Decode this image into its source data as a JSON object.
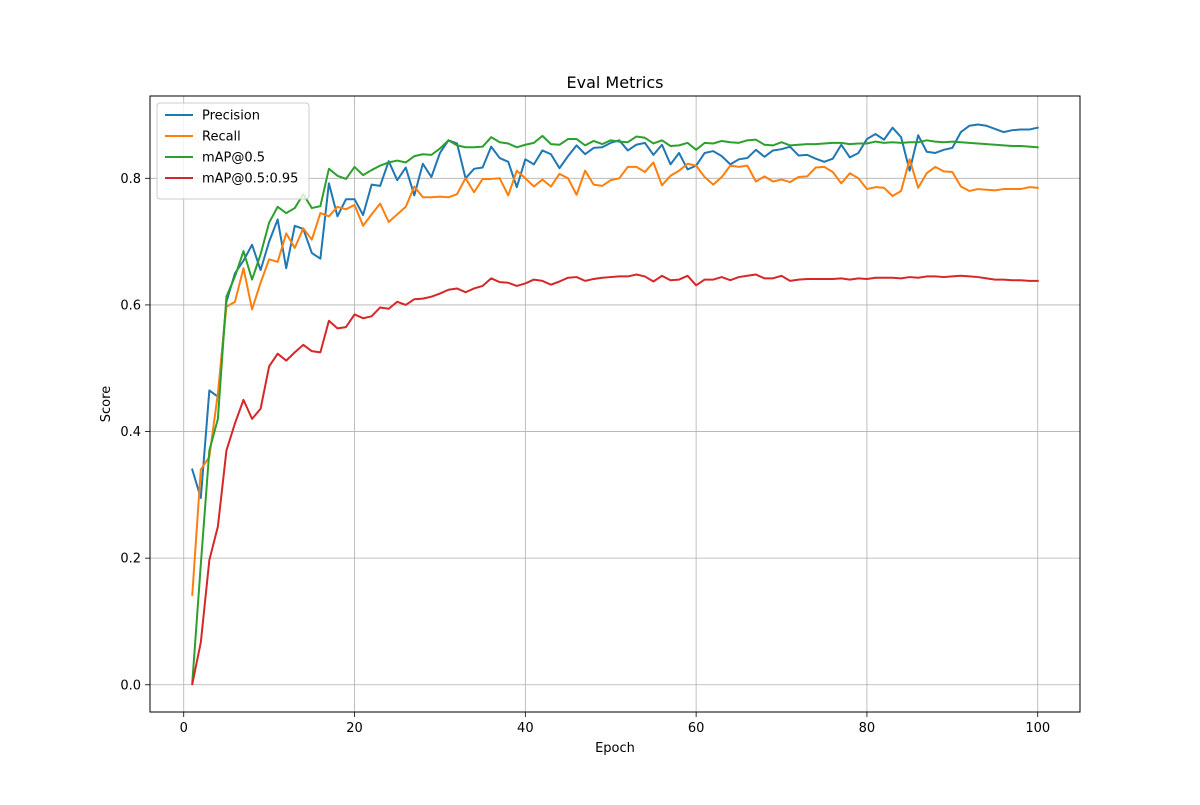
{
  "chart_data": {
    "type": "line",
    "title": "Eval Metrics",
    "xlabel": "Epoch",
    "ylabel": "Score",
    "xlim": [
      -3.95,
      104.95
    ],
    "ylim": [
      -0.043,
      0.93
    ],
    "xticks": [
      0,
      20,
      40,
      60,
      80,
      100
    ],
    "yticks": [
      0.0,
      0.2,
      0.4,
      0.6,
      0.8
    ],
    "xtick_labels": [
      "0",
      "20",
      "40",
      "60",
      "80",
      "100"
    ],
    "ytick_labels": [
      "0.0",
      "0.2",
      "0.4",
      "0.6",
      "0.8"
    ],
    "grid": true,
    "legend_position": "top-left",
    "x_start": 1,
    "series": [
      {
        "name": "Precision",
        "color": "#1f77b4",
        "values": [
          0.34,
          0.295,
          0.465,
          0.455,
          0.605,
          0.65,
          0.67,
          0.695,
          0.655,
          0.7,
          0.735,
          0.658,
          0.725,
          0.72,
          0.682,
          0.673,
          0.792,
          0.74,
          0.767,
          0.767,
          0.742,
          0.79,
          0.788,
          0.827,
          0.797,
          0.817,
          0.773,
          0.823,
          0.802,
          0.84,
          0.86,
          0.855,
          0.8,
          0.815,
          0.817,
          0.85,
          0.832,
          0.826,
          0.786,
          0.83,
          0.822,
          0.844,
          0.838,
          0.816,
          0.835,
          0.852,
          0.838,
          0.848,
          0.849,
          0.856,
          0.86,
          0.844,
          0.853,
          0.856,
          0.837,
          0.853,
          0.822,
          0.84,
          0.814,
          0.82,
          0.84,
          0.843,
          0.835,
          0.822,
          0.83,
          0.832,
          0.845,
          0.834,
          0.844,
          0.846,
          0.85,
          0.836,
          0.837,
          0.831,
          0.826,
          0.831,
          0.853,
          0.833,
          0.84,
          0.862,
          0.87,
          0.861,
          0.88,
          0.865,
          0.812,
          0.868,
          0.842,
          0.84,
          0.845,
          0.848,
          0.873,
          0.883,
          0.885,
          0.883,
          0.878,
          0.873,
          0.876,
          0.877,
          0.877,
          0.88
        ]
      },
      {
        "name": "Recall",
        "color": "#ff7f0e",
        "values": [
          0.142,
          0.34,
          0.36,
          0.46,
          0.597,
          0.605,
          0.658,
          0.593,
          0.635,
          0.672,
          0.668,
          0.713,
          0.69,
          0.721,
          0.703,
          0.745,
          0.74,
          0.755,
          0.751,
          0.758,
          0.725,
          0.743,
          0.76,
          0.731,
          0.743,
          0.755,
          0.787,
          0.77,
          0.77,
          0.771,
          0.77,
          0.775,
          0.8,
          0.778,
          0.799,
          0.799,
          0.8,
          0.773,
          0.812,
          0.8,
          0.787,
          0.798,
          0.787,
          0.807,
          0.8,
          0.774,
          0.812,
          0.79,
          0.788,
          0.797,
          0.8,
          0.818,
          0.818,
          0.81,
          0.825,
          0.789,
          0.804,
          0.812,
          0.823,
          0.82,
          0.802,
          0.79,
          0.802,
          0.82,
          0.818,
          0.82,
          0.795,
          0.803,
          0.795,
          0.798,
          0.794,
          0.802,
          0.803,
          0.817,
          0.818,
          0.81,
          0.792,
          0.808,
          0.8,
          0.783,
          0.786,
          0.785,
          0.772,
          0.78,
          0.83,
          0.785,
          0.808,
          0.818,
          0.811,
          0.81,
          0.787,
          0.78,
          0.783,
          0.782,
          0.781,
          0.783,
          0.783,
          0.783,
          0.786,
          0.785
        ]
      },
      {
        "name": "mAP@0.5",
        "color": "#2ca02c",
        "values": [
          0.003,
          0.19,
          0.37,
          0.42,
          0.613,
          0.645,
          0.685,
          0.64,
          0.68,
          0.73,
          0.755,
          0.745,
          0.753,
          0.775,
          0.753,
          0.756,
          0.815,
          0.804,
          0.799,
          0.818,
          0.805,
          0.813,
          0.82,
          0.825,
          0.828,
          0.825,
          0.835,
          0.838,
          0.837,
          0.847,
          0.86,
          0.852,
          0.849,
          0.849,
          0.85,
          0.865,
          0.857,
          0.855,
          0.849,
          0.853,
          0.856,
          0.867,
          0.854,
          0.853,
          0.862,
          0.862,
          0.852,
          0.859,
          0.854,
          0.86,
          0.858,
          0.857,
          0.866,
          0.864,
          0.855,
          0.86,
          0.851,
          0.852,
          0.856,
          0.845,
          0.856,
          0.855,
          0.859,
          0.857,
          0.856,
          0.86,
          0.861,
          0.853,
          0.852,
          0.857,
          0.852,
          0.853,
          0.854,
          0.854,
          0.855,
          0.856,
          0.856,
          0.854,
          0.855,
          0.855,
          0.858,
          0.856,
          0.857,
          0.856,
          0.857,
          0.857,
          0.86,
          0.858,
          0.857,
          0.858,
          0.857,
          0.856,
          0.855,
          0.854,
          0.853,
          0.852,
          0.851,
          0.851,
          0.85,
          0.849
        ]
      },
      {
        "name": "mAP@0.5:0.95",
        "color": "#d62728",
        "values": [
          0.001,
          0.067,
          0.197,
          0.25,
          0.37,
          0.413,
          0.45,
          0.42,
          0.436,
          0.503,
          0.523,
          0.512,
          0.525,
          0.537,
          0.527,
          0.525,
          0.575,
          0.563,
          0.565,
          0.585,
          0.579,
          0.582,
          0.596,
          0.594,
          0.605,
          0.6,
          0.609,
          0.61,
          0.613,
          0.618,
          0.624,
          0.626,
          0.62,
          0.626,
          0.63,
          0.642,
          0.636,
          0.635,
          0.63,
          0.634,
          0.64,
          0.638,
          0.632,
          0.637,
          0.643,
          0.644,
          0.638,
          0.641,
          0.643,
          0.644,
          0.645,
          0.645,
          0.648,
          0.645,
          0.637,
          0.646,
          0.639,
          0.64,
          0.646,
          0.631,
          0.64,
          0.64,
          0.644,
          0.639,
          0.644,
          0.646,
          0.648,
          0.642,
          0.642,
          0.646,
          0.638,
          0.64,
          0.641,
          0.641,
          0.641,
          0.641,
          0.642,
          0.64,
          0.642,
          0.641,
          0.643,
          0.643,
          0.643,
          0.642,
          0.644,
          0.643,
          0.645,
          0.645,
          0.644,
          0.645,
          0.646,
          0.645,
          0.644,
          0.642,
          0.64,
          0.64,
          0.639,
          0.639,
          0.638,
          0.638
        ]
      }
    ]
  }
}
